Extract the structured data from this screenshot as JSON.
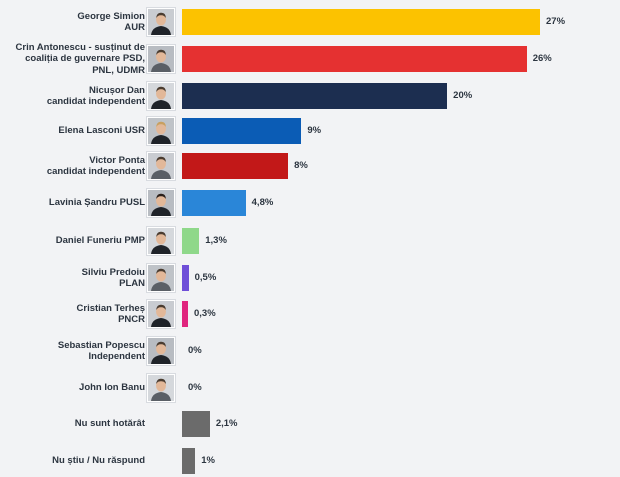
{
  "chart_data": {
    "type": "bar",
    "orientation": "horizontal",
    "xlim": [
      0,
      27
    ],
    "grid": false,
    "legend": "none",
    "categories": [
      {
        "lines": [
          "George Simion",
          "AUR"
        ],
        "value": 27,
        "label": "27%",
        "color": "#fcc200",
        "photo": "portrait-icon"
      },
      {
        "lines": [
          "Crin Antonescu - susținut de",
          "coaliția de guvernare PSD,",
          "PNL, UDMR"
        ],
        "value": 26,
        "label": "26%",
        "color": "#e53131",
        "photo": "portrait-icon"
      },
      {
        "lines": [
          "Nicușor Dan",
          "candidat independent"
        ],
        "value": 20,
        "label": "20%",
        "color": "#1c2e50",
        "photo": "portrait-icon"
      },
      {
        "lines": [
          "Elena Lasconi USR"
        ],
        "value": 9,
        "label": "9%",
        "color": "#0b5cb5",
        "photo": "portrait-icon"
      },
      {
        "lines": [
          "Victor Ponta",
          "candidat independent"
        ],
        "value": 8,
        "label": "8%",
        "color": "#c21818",
        "photo": "portrait-icon"
      },
      {
        "lines": [
          "Lavinia Șandru PUSL"
        ],
        "value": 4.8,
        "label": "4,8%",
        "color": "#2a86d8",
        "photo": "portrait-icon"
      },
      {
        "lines": [
          "Daniel Funeriu PMP"
        ],
        "value": 1.3,
        "label": "1,3%",
        "color": "#8fd88a",
        "photo": "portrait-icon"
      },
      {
        "lines": [
          "Silviu Predoiu",
          "PLAN"
        ],
        "value": 0.5,
        "label": "0,5%",
        "color": "#6f4fd8",
        "photo": "portrait-icon"
      },
      {
        "lines": [
          "Cristian Terheș",
          "PNCR"
        ],
        "value": 0.3,
        "label": "0,3%",
        "color": "#e0257e",
        "photo": "portrait-icon"
      },
      {
        "lines": [
          "Sebastian Popescu",
          "Independent"
        ],
        "value": 0,
        "label": "0%",
        "color": "#9aa0a6",
        "photo": "portrait-icon"
      },
      {
        "lines": [
          "John Ion Banu"
        ],
        "value": 0,
        "label": "0%",
        "color": "#9aa0a6",
        "photo": "portrait-icon"
      },
      {
        "lines": [
          "Nu sunt hotărât"
        ],
        "value": 2.1,
        "label": "2,1%",
        "color": "#6b6b6b",
        "photo": ""
      },
      {
        "lines": [
          "Nu știu / Nu răspund"
        ],
        "value": 1,
        "label": "1%",
        "color": "#6b6b6b",
        "photo": ""
      }
    ]
  }
}
